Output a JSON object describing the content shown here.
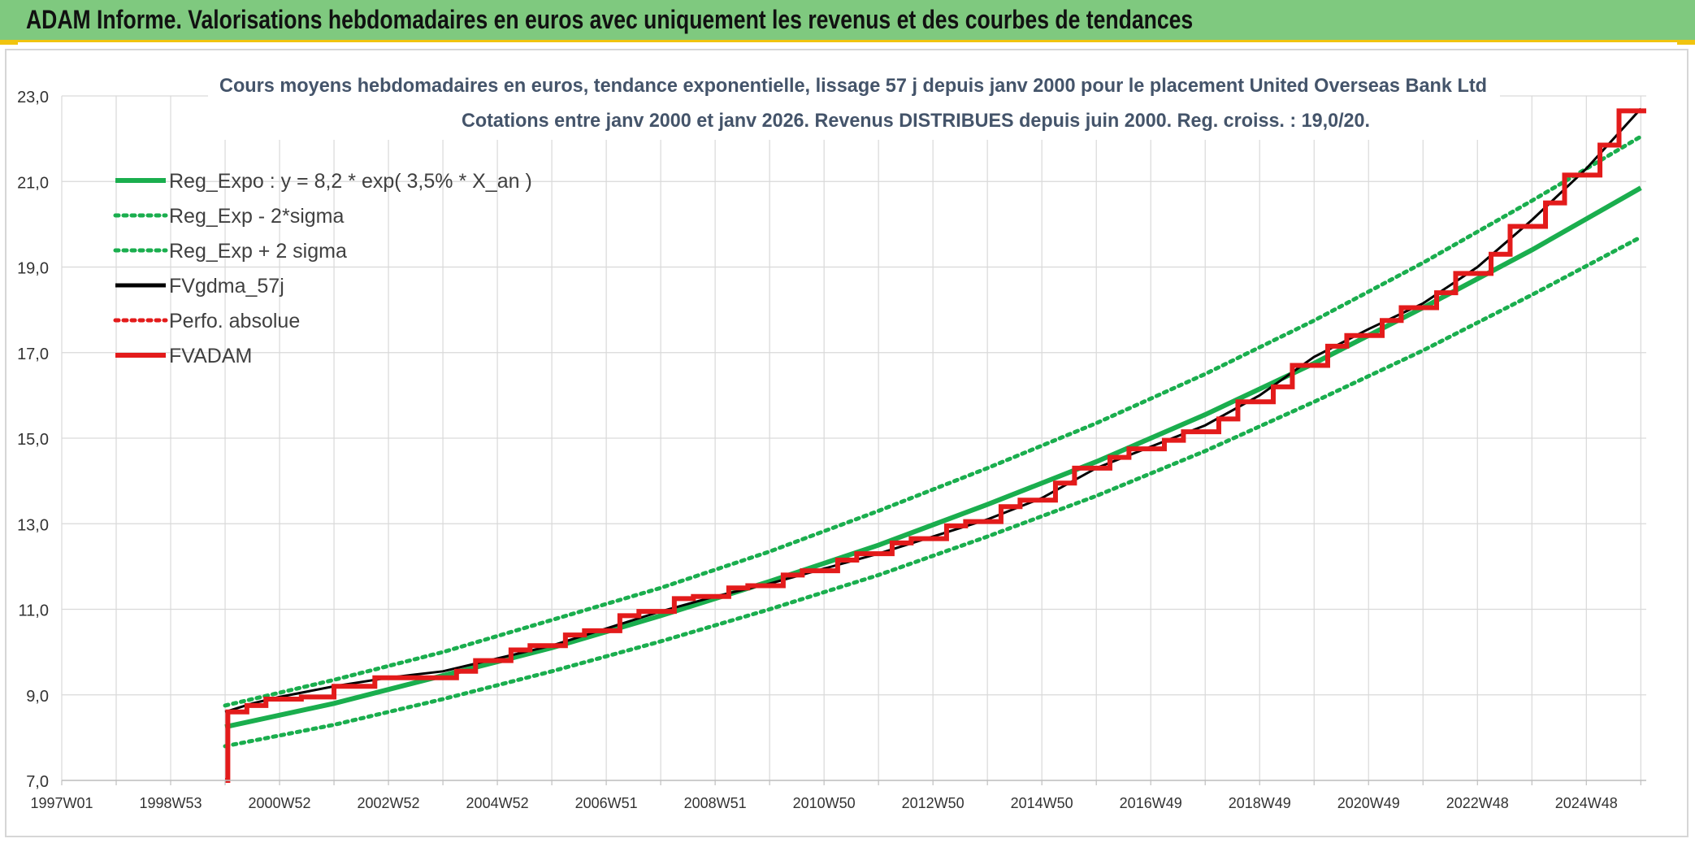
{
  "banner": {
    "title": "ADAM Informe. Valorisations hebdomadaires en euros avec uniquement les revenus et des courbes de tendances"
  },
  "chart_data": {
    "type": "line",
    "title_line1": "Cours moyens hebdomadaires en euros, tendance exponentielle, lissage 57 j depuis janv 2000 pour le placement United Overseas Bank Ltd",
    "title_line2": "Cotations entre janv 2000 et janv 2026. Revenus DISTRIBUES depuis juin 2000. Reg. croiss. : 19,0/20.",
    "xlabel": "",
    "ylabel": "",
    "x_range": [
      1997.0,
      2026.1
    ],
    "x_tick_labels": [
      "1997W01",
      "1998W53",
      "2000W52",
      "2002W52",
      "2004W52",
      "2006W51",
      "2008W51",
      "2010W50",
      "2012W50",
      "2014W50",
      "2016W49",
      "2018W49",
      "2020W49",
      "2022W48",
      "2024W48"
    ],
    "x_tick_years": [
      1997.0,
      1999.0,
      2001.0,
      2003.0,
      2005.0,
      2007.0,
      2009.0,
      2011.0,
      2013.0,
      2015.0,
      2017.0,
      2019.0,
      2021.0,
      2023.0,
      2025.0
    ],
    "ylim": [
      7.0,
      23.0
    ],
    "y_ticks": [
      "7,0",
      "9,0",
      "11,0",
      "13,0",
      "15,0",
      "17,0",
      "19,0",
      "21,0",
      "23,0"
    ],
    "y_tick_values": [
      7,
      9,
      11,
      13,
      15,
      17,
      19,
      21,
      23
    ],
    "grid": true,
    "legend_position": "top-left",
    "series": [
      {
        "name": "Reg_Expo : y = 8,2 * exp( 3,5% *  X_an )",
        "color": "#1aae4e",
        "style": "solid",
        "x": [
          2000.0,
          2002.0,
          2004.0,
          2006.0,
          2008.0,
          2010.0,
          2012.0,
          2014.0,
          2016.0,
          2018.0,
          2020.0,
          2022.0,
          2024.0,
          2026.0
        ],
        "y": [
          8.25,
          8.8,
          9.45,
          10.1,
          10.85,
          11.65,
          12.5,
          13.45,
          14.45,
          15.55,
          16.75,
          18.05,
          19.4,
          20.85
        ]
      },
      {
        "name": "Reg_Exp - 2*sigma",
        "color": "#1aae4e",
        "style": "dotted",
        "x": [
          2000.0,
          2002.0,
          2004.0,
          2006.0,
          2008.0,
          2010.0,
          2012.0,
          2014.0,
          2016.0,
          2018.0,
          2020.0,
          2022.0,
          2024.0,
          2026.0
        ],
        "y": [
          7.8,
          8.3,
          8.9,
          9.55,
          10.25,
          11.0,
          11.8,
          12.7,
          13.65,
          14.7,
          15.85,
          17.05,
          18.35,
          19.7
        ]
      },
      {
        "name": "Reg_Exp + 2 sigma",
        "color": "#1aae4e",
        "style": "dotted",
        "x": [
          2000.0,
          2002.0,
          2004.0,
          2006.0,
          2008.0,
          2010.0,
          2012.0,
          2014.0,
          2016.0,
          2018.0,
          2020.0,
          2022.0,
          2024.0,
          2026.0
        ],
        "y": [
          8.75,
          9.35,
          10.0,
          10.75,
          11.5,
          12.35,
          13.3,
          14.3,
          15.35,
          16.5,
          17.75,
          19.1,
          20.55,
          22.05
        ]
      },
      {
        "name": "FVgdma_57j",
        "color": "#000000",
        "style": "solid",
        "x": [
          2000.0,
          2000.5,
          2001.0,
          2002.0,
          2003.0,
          2004.0,
          2005.0,
          2006.0,
          2007.0,
          2008.0,
          2009.0,
          2010.0,
          2011.0,
          2012.0,
          2013.0,
          2014.0,
          2015.0,
          2016.0,
          2017.0,
          2018.0,
          2019.0,
          2020.0,
          2021.0,
          2022.0,
          2023.0,
          2024.0,
          2025.0,
          2026.0
        ],
        "y": [
          8.6,
          8.8,
          8.95,
          9.2,
          9.4,
          9.55,
          9.85,
          10.15,
          10.55,
          10.95,
          11.3,
          11.6,
          11.95,
          12.3,
          12.7,
          13.1,
          13.6,
          14.3,
          14.8,
          15.3,
          16.0,
          16.9,
          17.55,
          18.15,
          19.0,
          20.1,
          21.3,
          22.7
        ]
      },
      {
        "name": "Perfo. absolue",
        "color": "#e31b1b",
        "style": "dotted",
        "x": [],
        "y": []
      },
      {
        "name": "FVADAM",
        "color": "#e31b1b",
        "style": "step",
        "x": [
          2000.0,
          2000.05,
          2000.4,
          2000.75,
          2001.4,
          2002.0,
          2002.75,
          2003.5,
          2004.25,
          2004.6,
          2005.25,
          2005.6,
          2006.25,
          2006.6,
          2007.25,
          2007.6,
          2008.25,
          2008.6,
          2009.25,
          2009.6,
          2010.25,
          2010.6,
          2011.25,
          2011.6,
          2012.25,
          2012.6,
          2013.25,
          2013.6,
          2014.25,
          2014.6,
          2015.25,
          2015.6,
          2016.25,
          2016.6,
          2017.25,
          2017.6,
          2018.25,
          2018.6,
          2019.25,
          2019.6,
          2020.25,
          2020.6,
          2021.25,
          2021.6,
          2022.25,
          2022.6,
          2023.25,
          2023.6,
          2024.25,
          2024.6,
          2025.25,
          2025.6,
          2026.1
        ],
        "y": [
          7.0,
          8.6,
          8.75,
          8.9,
          8.95,
          9.2,
          9.4,
          9.4,
          9.55,
          9.8,
          10.05,
          10.15,
          10.4,
          10.5,
          10.85,
          10.95,
          11.25,
          11.3,
          11.5,
          11.55,
          11.8,
          11.9,
          12.15,
          12.3,
          12.55,
          12.65,
          12.95,
          13.05,
          13.4,
          13.55,
          13.95,
          14.3,
          14.55,
          14.75,
          14.95,
          15.15,
          15.45,
          15.85,
          16.2,
          16.7,
          17.15,
          17.4,
          17.75,
          18.05,
          18.4,
          18.85,
          19.3,
          19.95,
          20.5,
          21.15,
          21.85,
          22.65,
          22.65
        ]
      }
    ]
  }
}
